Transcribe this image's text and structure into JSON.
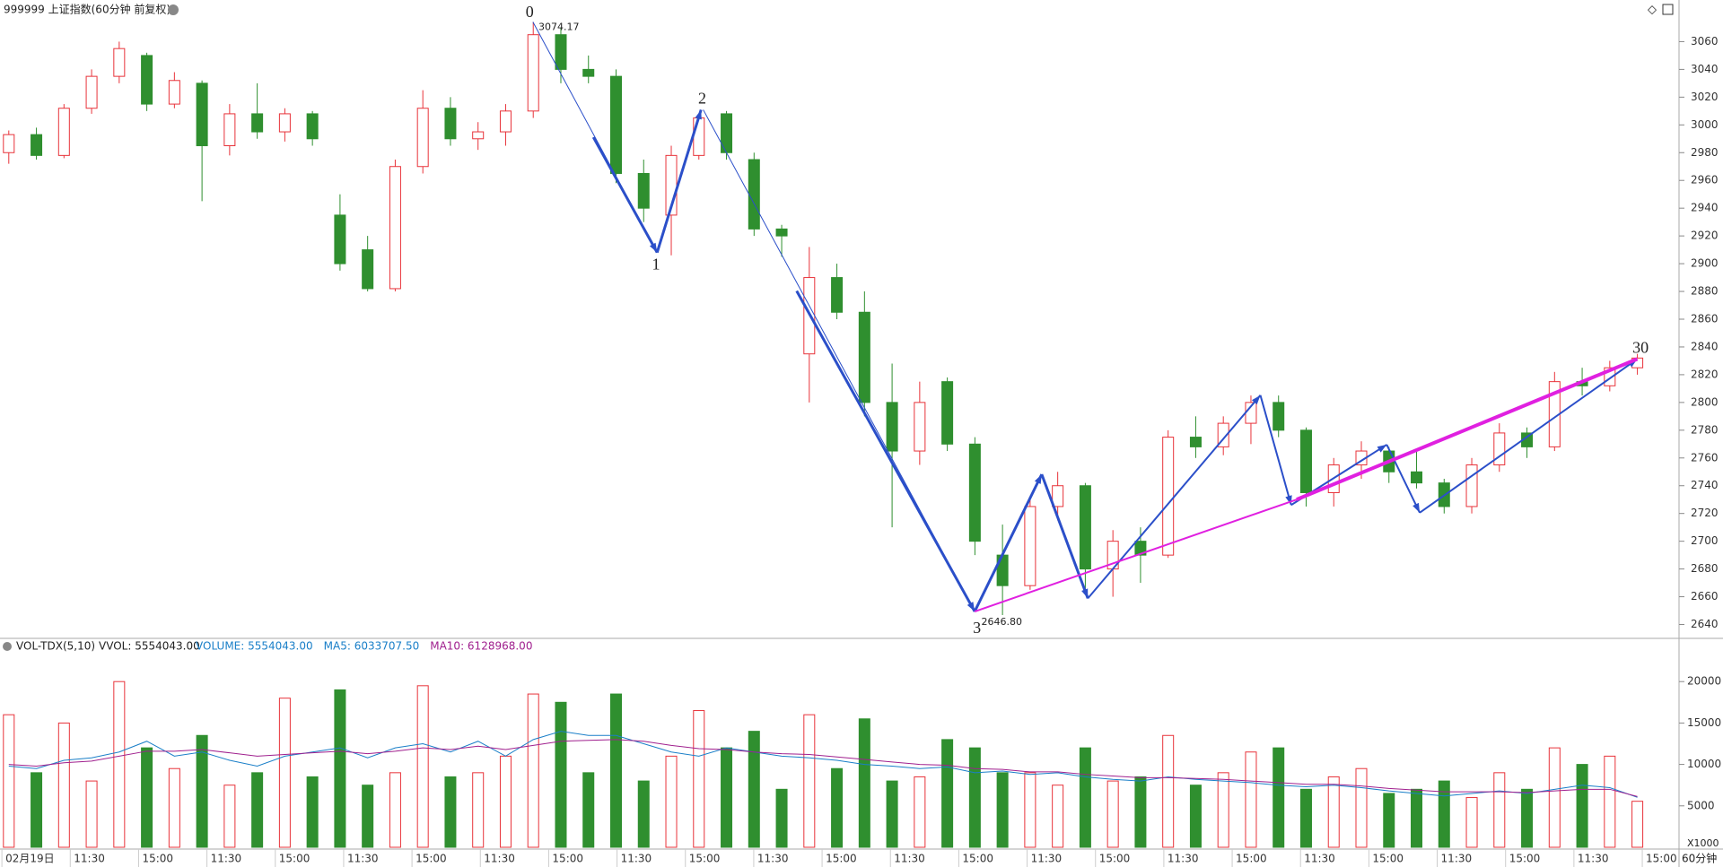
{
  "chart_data": {
    "type": "candlestick",
    "title": "999999 上证指数(60分钟 前复权)",
    "ylim": [
      2630,
      3090
    ],
    "yticks": [
      2640,
      2660,
      2680,
      2700,
      2720,
      2740,
      2760,
      2780,
      2800,
      2820,
      2840,
      2860,
      2880,
      2900,
      2920,
      2940,
      2960,
      2980,
      3000,
      3020,
      3040,
      3060
    ],
    "up_color": "#e8333a",
    "down_color": "#2f8f2f",
    "open": [
      2980,
      2993,
      2978,
      3012,
      3035,
      3050,
      3015,
      3030,
      2985,
      3008,
      2995,
      3008,
      2935,
      2910,
      2882,
      2970,
      3012,
      2990,
      2995,
      3010,
      3065,
      3040,
      3035,
      2965,
      2935,
      2978,
      3008,
      2975,
      2925,
      2835,
      2890,
      2865,
      2800,
      2765,
      2815,
      2770,
      2690,
      2668,
      2725,
      2740,
      2680,
      2700,
      2690,
      2775,
      2768,
      2785,
      2800,
      2780,
      2735,
      2755,
      2765,
      2750,
      2742,
      2725,
      2755,
      2778,
      2768,
      2815,
      2812,
      2825
    ],
    "high": [
      2996,
      2998,
      3015,
      3040,
      3060,
      3052,
      3038,
      3032,
      3015,
      3030,
      3012,
      3010,
      2950,
      2920,
      2975,
      3025,
      3020,
      3002,
      3015,
      3074.17,
      3070,
      3050,
      3040,
      2975,
      2985,
      3008,
      3010,
      2980,
      2928,
      2912,
      2900,
      2880,
      2828,
      2815,
      2818,
      2775,
      2712,
      2730,
      2750,
      2742,
      2708,
      2710,
      2780,
      2790,
      2790,
      2805,
      2805,
      2782,
      2760,
      2772,
      2768,
      2765,
      2745,
      2760,
      2785,
      2782,
      2822,
      2825,
      2830,
      2835
    ],
    "low": [
      2972,
      2975,
      2976,
      3008,
      3030,
      3010,
      3012,
      2945,
      2978,
      2990,
      2988,
      2985,
      2895,
      2880,
      2880,
      2965,
      2985,
      2982,
      2985,
      3005,
      3030,
      3030,
      2958,
      2930,
      2906,
      2975,
      2975,
      2920,
      2905,
      2800,
      2860,
      2790,
      2710,
      2755,
      2765,
      2690,
      2646.8,
      2665,
      2715,
      2665,
      2660,
      2670,
      2688,
      2760,
      2762,
      2770,
      2775,
      2725,
      2725,
      2745,
      2742,
      2738,
      2720,
      2720,
      2750,
      2760,
      2765,
      2805,
      2808,
      2820
    ],
    "close": [
      2993,
      2978,
      3012,
      3035,
      3055,
      3015,
      3032,
      2985,
      3008,
      2995,
      3008,
      2990,
      2900,
      2882,
      2970,
      3012,
      2990,
      2995,
      3010,
      3065,
      3040,
      3035,
      2965,
      2940,
      2978,
      3005,
      2980,
      2925,
      2920,
      2890,
      2865,
      2800,
      2765,
      2800,
      2770,
      2700,
      2668,
      2725,
      2740,
      2680,
      2700,
      2690,
      2775,
      2768,
      2785,
      2800,
      2780,
      2735,
      2755,
      2765,
      2750,
      2742,
      2725,
      2755,
      2778,
      2768,
      2815,
      2812,
      2825,
      2832
    ],
    "annotations": [
      {
        "value": 3074.17,
        "label": "3074.17"
      },
      {
        "value": 2646.8,
        "label": "2646.80"
      }
    ],
    "wave_labels": [
      "0",
      "1",
      "2",
      "3",
      "30"
    ],
    "volume_panel": {
      "title": "VOL-TDX(5,10)",
      "vvol": "VVOL: 5554043.00",
      "ylim": [
        0,
        25000
      ],
      "yticks": [
        5000,
        10000,
        15000,
        20000
      ],
      "unit": "X1000",
      "series": [
        {
          "name": "VOLUME: 5554043.00",
          "color": "#1a7fc8",
          "values": [
            16000,
            9000,
            15000,
            8000,
            20000,
            12000,
            9500,
            13500,
            7500,
            9000,
            18000,
            8500,
            19000,
            7500,
            9000,
            19500,
            8500,
            9000,
            11000,
            18500,
            17500,
            9000,
            18500,
            8000,
            11000,
            16500,
            12000,
            14000,
            7000,
            16000,
            9500,
            15500,
            8000,
            8500,
            13000,
            12000,
            9000,
            9000,
            7500,
            12000,
            8000,
            8500,
            13500,
            7500,
            9000,
            11500,
            12000,
            7000,
            8500,
            9500,
            6500,
            7000,
            8000,
            6000,
            9000,
            7000,
            12000,
            10000,
            11000,
            5554.043
          ]
        },
        {
          "name": "MA5: 6033707.50",
          "color": "#1a7fc8",
          "values": [
            9800,
            9500,
            10500,
            10800,
            11500,
            12800,
            11000,
            11500,
            10500,
            9800,
            11000,
            11500,
            12000,
            10800,
            12000,
            12500,
            11500,
            12800,
            11000,
            13000,
            14000,
            13500,
            13500,
            12500,
            11500,
            11000,
            12000,
            11500,
            11000,
            10800,
            10500,
            10000,
            9800,
            9500,
            9700,
            9000,
            9200,
            8800,
            9000,
            8500,
            8200,
            8000,
            8500,
            8200,
            8000,
            7800,
            7500,
            7300,
            7500,
            7200,
            6800,
            6500,
            6200,
            6500,
            6800,
            6500,
            7000,
            7500,
            7200,
            6033.7075
          ]
        },
        {
          "name": "MA10: 6128968.00",
          "color": "#a0208e",
          "values": [
            10000,
            9800,
            10200,
            10400,
            11000,
            11600,
            11600,
            11800,
            11400,
            11000,
            11200,
            11400,
            11600,
            11300,
            11600,
            12000,
            11800,
            12200,
            11800,
            12300,
            12800,
            12900,
            13000,
            12800,
            12300,
            11900,
            11800,
            11500,
            11300,
            11200,
            10900,
            10600,
            10300,
            10000,
            9900,
            9500,
            9400,
            9100,
            9100,
            8800,
            8600,
            8400,
            8400,
            8300,
            8200,
            8000,
            7800,
            7600,
            7600,
            7400,
            7100,
            6900,
            6700,
            6700,
            6700,
            6600,
            6800,
            7000,
            7000,
            6128.968
          ]
        }
      ]
    },
    "time_labels": [
      "02月19日",
      "11:30",
      "15:00",
      "11:30",
      "15:00",
      "11:30",
      "15:00",
      "11:30",
      "15:00",
      "11:30",
      "15:00",
      "11:30",
      "15:00",
      "11:30",
      "15:00",
      "11:30",
      "15:00",
      "11:30",
      "15:00",
      "11:30",
      "15:00",
      "11:30",
      "15:00",
      "11:30",
      "15:00"
    ],
    "period": "60分钟"
  }
}
